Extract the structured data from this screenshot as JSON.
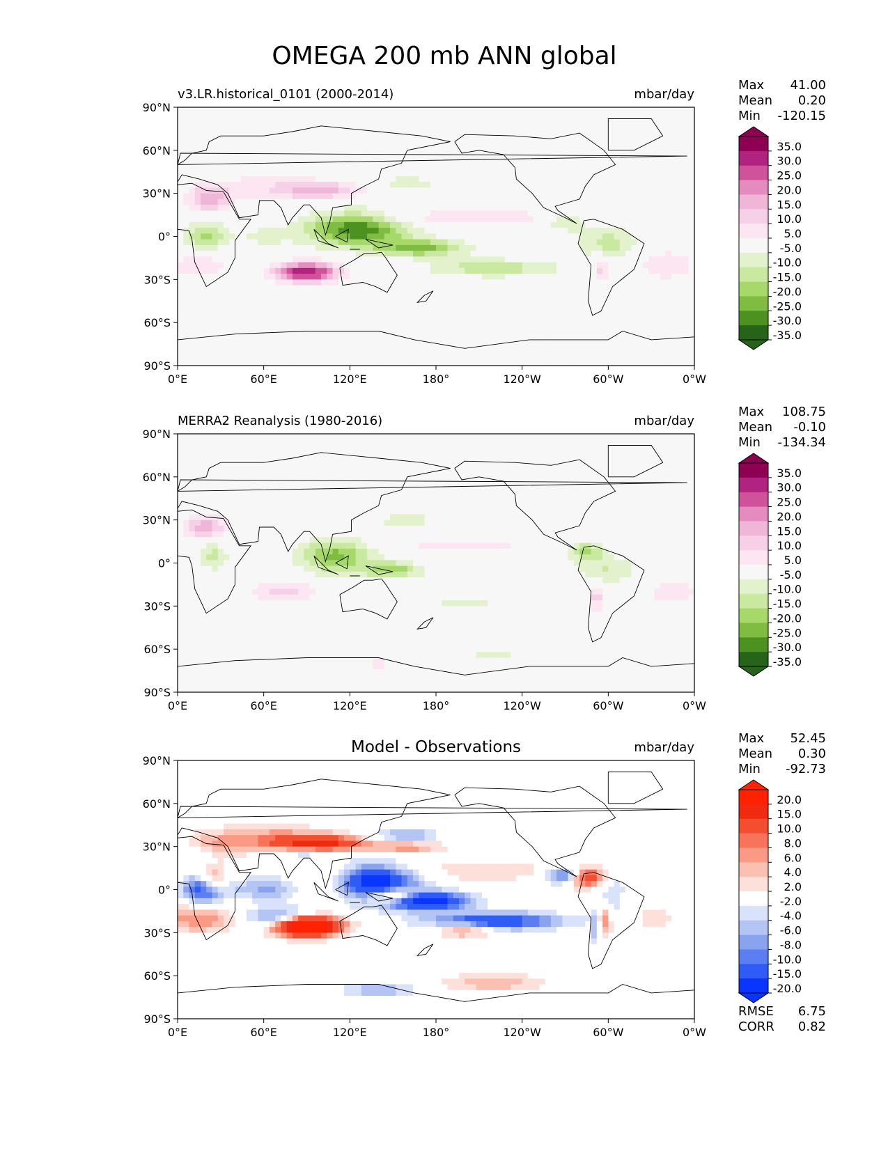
{
  "figure": {
    "title": "OMEGA 200 mb ANN global"
  },
  "colors": {
    "piyg": [
      "#276419",
      "#4d9221",
      "#7fbc41",
      "#a6d96a",
      "#c9e8a0",
      "#e3f2cc",
      "#f7f7f7",
      "#fbe6f1",
      "#f6d0e6",
      "#f0b6d8",
      "#e48cc0",
      "#d0529b",
      "#b0237e",
      "#8e0152"
    ],
    "bwr": [
      "#0a35ff",
      "#2f5cf5",
      "#5b7ef0",
      "#8aa3ef",
      "#b4c5f3",
      "#d8e2fa",
      "#ffffff",
      "#fde0da",
      "#fcc0b2",
      "#fa9a85",
      "#f7735a",
      "#f44e31",
      "#ef2a10",
      "#ff2200"
    ],
    "coast": "#000000",
    "axis": "#000000"
  },
  "axes": {
    "lat_ticks": [
      "90°N",
      "60°N",
      "30°N",
      "0°",
      "30°S",
      "60°S",
      "90°S"
    ],
    "lon_ticks": [
      "0°E",
      "60°E",
      "120°E",
      "180°",
      "120°W",
      "60°W",
      "0°W"
    ]
  },
  "chart_data": [
    {
      "type": "heatmap",
      "panel_title": "v3.LR.historical_0101 (2000-2014)",
      "units": "mbar/day",
      "stats": [
        {
          "label": "Max",
          "value": "41.00"
        },
        {
          "label": "Mean",
          "value": "0.20"
        },
        {
          "label": "Min",
          "value": "-120.15"
        }
      ],
      "colorbar_ticks": [
        "35.0",
        "30.0",
        "25.0",
        "20.0",
        "15.0",
        "10.0",
        "5.0",
        "-5.0",
        "-10.0",
        "-15.0",
        "-20.0",
        "-25.0",
        "-30.0",
        "-35.0"
      ],
      "xlim": [
        0,
        360
      ],
      "ylim": [
        -90,
        90
      ],
      "palette": "piyg"
    },
    {
      "type": "heatmap",
      "panel_title": "MERRA2 Reanalysis (1980-2016)",
      "units": "mbar/day",
      "stats": [
        {
          "label": "Max",
          "value": "108.75"
        },
        {
          "label": "Mean",
          "value": "-0.10"
        },
        {
          "label": "Min",
          "value": "-134.34"
        }
      ],
      "colorbar_ticks": [
        "35.0",
        "30.0",
        "25.0",
        "20.0",
        "15.0",
        "10.0",
        "5.0",
        "-5.0",
        "-10.0",
        "-15.0",
        "-20.0",
        "-25.0",
        "-30.0",
        "-35.0"
      ],
      "xlim": [
        0,
        360
      ],
      "ylim": [
        -90,
        90
      ],
      "palette": "piyg"
    },
    {
      "type": "heatmap",
      "panel_title": "Model - Observations",
      "units": "mbar/day",
      "stats": [
        {
          "label": "Max",
          "value": "52.45"
        },
        {
          "label": "Mean",
          "value": "0.30"
        },
        {
          "label": "Min",
          "value": "-92.73"
        }
      ],
      "colorbar_ticks": [
        "20.0",
        "15.0",
        "10.0",
        "8.0",
        "6.0",
        "4.0",
        "2.0",
        "-2.0",
        "-4.0",
        "-6.0",
        "-8.0",
        "-10.0",
        "-15.0",
        "-20.0"
      ],
      "extra_stats": [
        {
          "label": "RMSE",
          "value": "6.75"
        },
        {
          "label": "CORR",
          "value": "0.82"
        }
      ],
      "xlim": [
        0,
        360
      ],
      "ylim": [
        -90,
        90
      ],
      "palette": "bwr"
    }
  ]
}
